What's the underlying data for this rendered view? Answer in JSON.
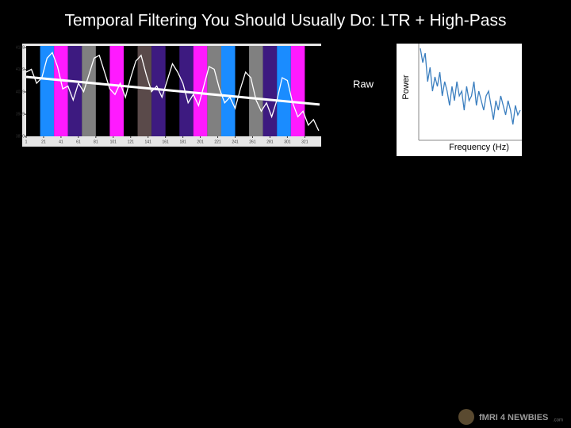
{
  "title": "Temporal Filtering You Should Usually Do: LTR + High-Pass",
  "chart_data": [
    {
      "type": "line",
      "label": "Raw",
      "color": "#ffffff",
      "x": [
        1,
        7,
        13,
        19,
        25,
        31,
        37,
        43,
        49,
        55,
        61,
        67,
        73,
        79,
        85,
        91,
        97,
        103,
        109,
        115,
        121,
        127,
        133,
        139,
        145,
        151,
        157,
        163,
        169,
        175,
        181,
        187,
        193,
        199,
        205,
        211,
        217,
        223,
        229,
        235,
        241,
        247,
        253,
        259,
        265,
        271,
        277,
        283,
        289,
        295,
        301,
        307,
        313,
        319,
        325,
        331,
        337
      ],
      "values": [
        4100,
        4110,
        4060,
        4080,
        4150,
        4170,
        4120,
        4040,
        4050,
        4000,
        4060,
        4030,
        4090,
        4150,
        4160,
        4100,
        4040,
        4020,
        4060,
        4010,
        4080,
        4140,
        4160,
        4090,
        4030,
        4050,
        4010,
        4070,
        4130,
        4100,
        4060,
        3990,
        4020,
        3980,
        4050,
        4120,
        4110,
        4040,
        3990,
        4010,
        3970,
        4040,
        4100,
        4080,
        4000,
        3960,
        3990,
        3940,
        4000,
        4080,
        4070,
        3990,
        3940,
        3960,
        3910,
        3930,
        3890
      ],
      "trend": {
        "x": [
          1,
          338
        ],
        "values": [
          4083,
          3984
        ],
        "color": "#ffffff"
      },
      "blocks": [
        {
          "start": 17,
          "end": 33,
          "color": "#1a8cff"
        },
        {
          "start": 33,
          "end": 49,
          "color": "#ff1aff"
        },
        {
          "start": 49,
          "end": 65,
          "color": "#3d1a80"
        },
        {
          "start": 65,
          "end": 81,
          "color": "#808080"
        },
        {
          "start": 97,
          "end": 113,
          "color": "#ff1aff"
        },
        {
          "start": 129,
          "end": 145,
          "color": "#5a4a4a"
        },
        {
          "start": 145,
          "end": 161,
          "color": "#3d1a80"
        },
        {
          "start": 177,
          "end": 193,
          "color": "#3d1a80"
        },
        {
          "start": 193,
          "end": 209,
          "color": "#ff1aff"
        },
        {
          "start": 209,
          "end": 225,
          "color": "#808080"
        },
        {
          "start": 225,
          "end": 241,
          "color": "#1a8cff"
        },
        {
          "start": 257,
          "end": 273,
          "color": "#808080"
        },
        {
          "start": 273,
          "end": 289,
          "color": "#3d1a80"
        },
        {
          "start": 289,
          "end": 305,
          "color": "#1a8cff"
        },
        {
          "start": 305,
          "end": 321,
          "color": "#ff1aff"
        }
      ],
      "xlim": [
        1,
        338
      ],
      "xticks": [
        1,
        21,
        41,
        61,
        81,
        101,
        121,
        141,
        161,
        181,
        201,
        221,
        241,
        261,
        281,
        301,
        321
      ],
      "ylim": [
        3870,
        4188
      ],
      "yticks": [
        3870,
        3949,
        4029,
        4109,
        4188
      ]
    },
    {
      "type": "line",
      "ylabel": "Power",
      "xlabel": "Frequency (Hz)",
      "color": "#3a7ebf",
      "values": [
        0.95,
        0.8,
        0.9,
        0.6,
        0.75,
        0.5,
        0.65,
        0.55,
        0.7,
        0.45,
        0.6,
        0.5,
        0.35,
        0.55,
        0.4,
        0.6,
        0.45,
        0.5,
        0.3,
        0.55,
        0.4,
        0.45,
        0.6,
        0.35,
        0.5,
        0.4,
        0.3,
        0.45,
        0.5,
        0.35,
        0.2,
        0.4,
        0.3,
        0.45,
        0.35,
        0.25,
        0.4,
        0.3,
        0.15,
        0.35,
        0.25,
        0.3
      ],
      "ylim": [
        0,
        1
      ]
    }
  ],
  "logo": {
    "text": "fMRI 4 NEWBIES",
    "suffix": ".com"
  }
}
